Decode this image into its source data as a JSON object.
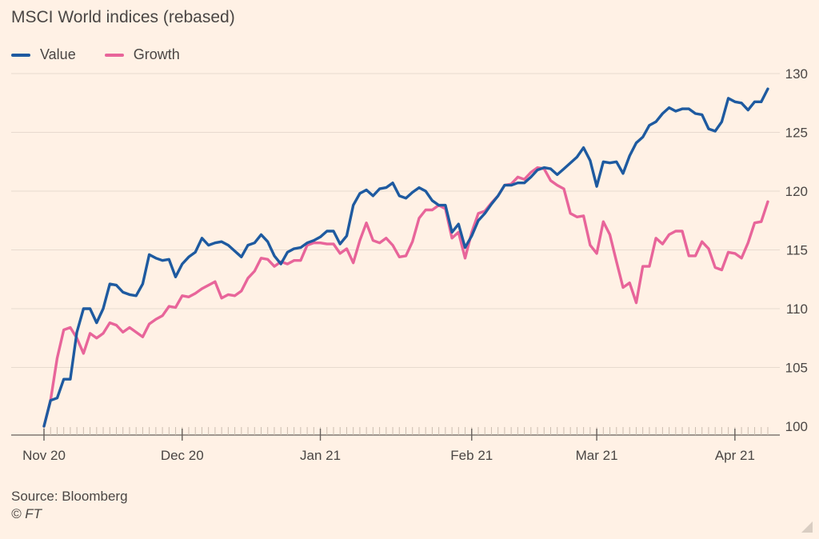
{
  "footer": {
    "source": "Source: Bloomberg",
    "copyright": "© FT"
  },
  "colors": {
    "background": "#FFF1E5",
    "value": "#1E5AA0",
    "growth": "#E8659A",
    "grid": "#E7DACF",
    "axis": "#66605C"
  },
  "chart_data": {
    "type": "line",
    "title": "MSCI World indices (rebased)",
    "xlabel": "",
    "ylabel": "",
    "ylim": [
      100,
      130
    ],
    "yticks": [
      100,
      105,
      110,
      115,
      120,
      125,
      130
    ],
    "xtick_labels": [
      "Nov 20",
      "Dec 20",
      "Jan 21",
      "Feb 21",
      "Mar 21",
      "Apr 21"
    ],
    "xtick_index": [
      0,
      21,
      42,
      65,
      84,
      105
    ],
    "grid": true,
    "legend_position": "top-left",
    "series": [
      {
        "name": "Value",
        "color": "#1E5AA0",
        "values": [
          100,
          102.2,
          102.4,
          104,
          104,
          108,
          110,
          110,
          108.8,
          110,
          112.1,
          112,
          111.4,
          111.2,
          111.1,
          112.1,
          114.6,
          114.3,
          114.1,
          114.2,
          112.7,
          113.8,
          114.4,
          114.8,
          116,
          115.4,
          115.6,
          115.7,
          115.4,
          114.9,
          114.4,
          115.4,
          115.6,
          116.3,
          115.7,
          114.5,
          113.8,
          114.8,
          115.1,
          115.2,
          115.6,
          115.8,
          116.1,
          116.6,
          116.6,
          115.5,
          116.2,
          118.8,
          119.8,
          120.1,
          119.6,
          120.2,
          120.3,
          120.7,
          119.6,
          119.4,
          119.9,
          120.3,
          120,
          119.2,
          118.8,
          118.8,
          116.5,
          117.2,
          115.2,
          116.2,
          117.5,
          118.1,
          118.9,
          119.6,
          120.5,
          120.5,
          120.7,
          120.7,
          121.2,
          121.8,
          122,
          121.9,
          121.4,
          121.9,
          122.4,
          122.9,
          123.7,
          122.6,
          120.4,
          122.5,
          122.4,
          122.5,
          121.5,
          123,
          124.1,
          124.6,
          125.6,
          125.9,
          126.6,
          127.1,
          126.8,
          127,
          127,
          126.6,
          126.5,
          125.3,
          125.1,
          125.9,
          127.9,
          127.6,
          127.5,
          126.9,
          127.6,
          127.6,
          128.7
        ]
      },
      {
        "name": "Growth",
        "color": "#E8659A",
        "values": [
          100,
          102.2,
          105.8,
          108.2,
          108.4,
          107.5,
          106.2,
          107.9,
          107.5,
          107.9,
          108.8,
          108.6,
          108,
          108.4,
          108,
          107.6,
          108.7,
          109.1,
          109.4,
          110.2,
          110.1,
          111.1,
          111,
          111.3,
          111.7,
          112,
          112.3,
          110.9,
          111.2,
          111.1,
          111.5,
          112.6,
          113.2,
          114.3,
          114.2,
          113.6,
          114,
          113.8,
          114.1,
          114.1,
          115.4,
          115.6,
          115.6,
          115.5,
          115.5,
          114.7,
          115.1,
          113.9,
          115.8,
          117.3,
          115.8,
          115.6,
          116,
          115.4,
          114.4,
          114.5,
          115.7,
          117.7,
          118.4,
          118.4,
          118.8,
          118.5,
          116,
          116.5,
          114.3,
          116.5,
          118.1,
          118.3,
          119,
          119.6,
          120.5,
          120.6,
          121.2,
          121,
          121.6,
          122,
          121.9,
          120.9,
          120.5,
          120.2,
          118.1,
          117.8,
          117.9,
          115.4,
          114.7,
          117.4,
          116.3,
          114,
          111.8,
          112.2,
          110.5,
          113.6,
          113.6,
          116,
          115.5,
          116.3,
          116.6,
          116.6,
          114.5,
          114.5,
          115.7,
          115.1,
          113.5,
          113.3,
          114.8,
          114.7,
          114.3,
          115.6,
          117.3,
          117.4,
          119.1
        ]
      }
    ]
  }
}
